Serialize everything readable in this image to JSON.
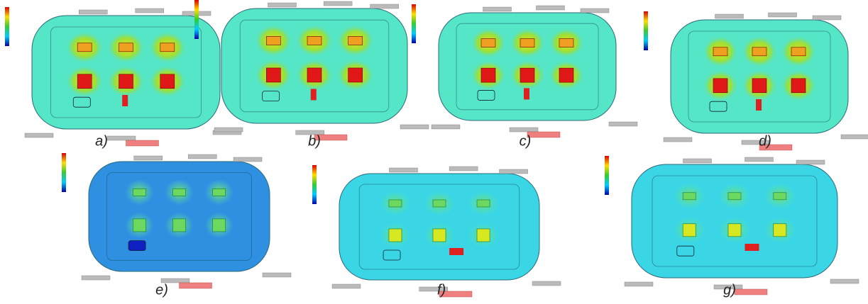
{
  "panels": [
    {
      "label": "a)"
    },
    {
      "label": "b)"
    },
    {
      "label": "c)"
    },
    {
      "label": "d)"
    },
    {
      "label": "e)"
    },
    {
      "label": "f)"
    },
    {
      "label": "g)"
    }
  ]
}
